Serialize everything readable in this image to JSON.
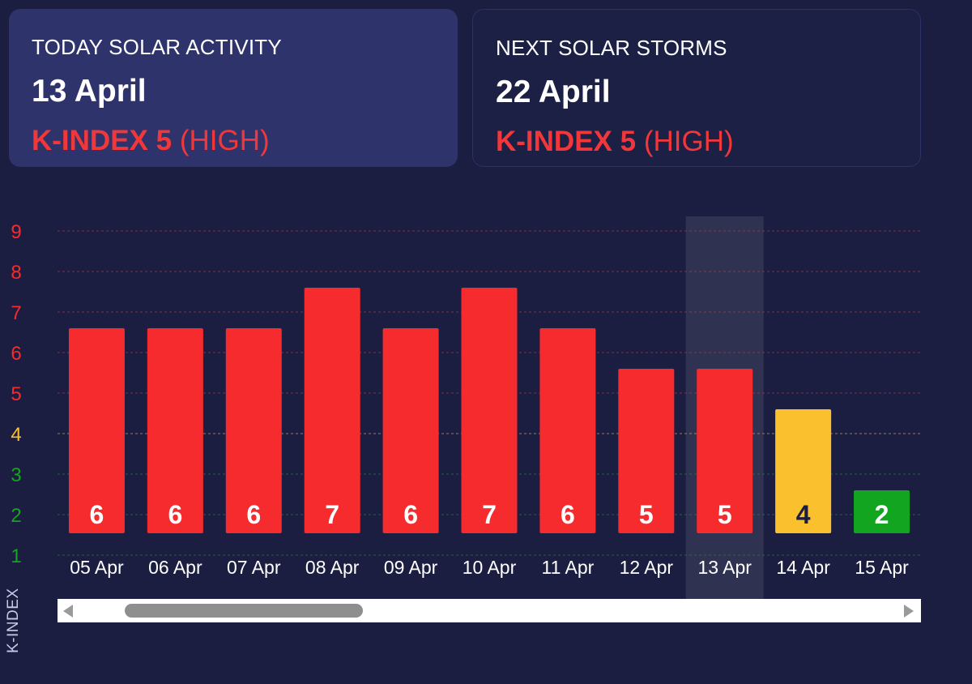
{
  "cards": {
    "today": {
      "label": "TODAY SOLAR ACTIVITY",
      "date": "13 April",
      "kindex": "K-INDEX 5",
      "level": "(HIGH)"
    },
    "next": {
      "label": "NEXT SOLAR STORMS",
      "date": "22 April",
      "kindex": "K-INDEX 5",
      "level": "(HIGH)"
    }
  },
  "chart_data": {
    "type": "bar",
    "categories": [
      "05 Apr",
      "06 Apr",
      "07 Apr",
      "08 Apr",
      "09 Apr",
      "10 Apr",
      "11 Apr",
      "12 Apr",
      "13 Apr",
      "14 Apr",
      "15 Apr"
    ],
    "values": [
      6,
      6,
      6,
      7,
      6,
      7,
      6,
      5,
      5,
      4,
      2
    ],
    "highlighted_category": "13 Apr",
    "ylabel": "K-INDEX",
    "yticks": [
      1,
      2,
      3,
      4,
      5,
      6,
      7,
      8,
      9
    ],
    "ylim": [
      1,
      9
    ],
    "grid": true,
    "colors": {
      "high": "#f52b2e",
      "moderate": "#fbc02d",
      "low": "#12a51f"
    }
  }
}
